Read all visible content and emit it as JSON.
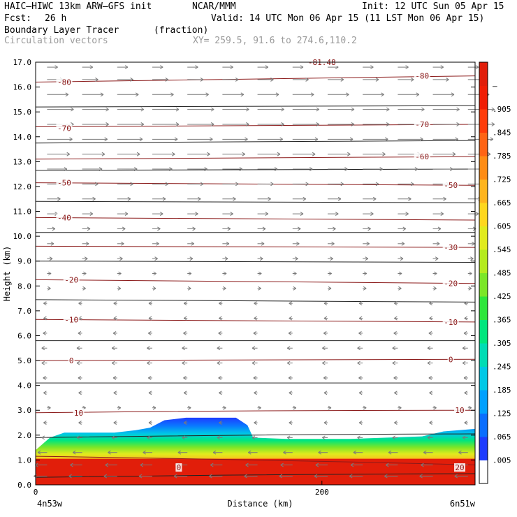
{
  "header": {
    "model": "HAIC—HIWC 13km ARW—GFS init",
    "org": "NCAR/MMM",
    "init": "Init: 12 UTC Sun 05 Apr 15",
    "fcst_label": "Fcst:",
    "fcst_value": "26 h",
    "valid": "Valid: 14 UTC Mon 06 Apr 15 (11 LST Mon 06 Apr 15)",
    "field": "Boundary Layer Tracer",
    "units": "(fraction)",
    "vectors": "Circulation vectors",
    "xy": "XY= 259.5, 91.6 to 274.6,110.2"
  },
  "chart_data": {
    "type": "heatmap",
    "title": "Boundary Layer Tracer",
    "xlabel": "Distance (km)",
    "ylabel": "Height (km)",
    "xlim": [
      0,
      307
    ],
    "ylim": [
      0,
      17
    ],
    "x_ticks": [
      {
        "value": 0,
        "label": "0"
      },
      {
        "value": 200,
        "label": "200"
      }
    ],
    "x_end_labels": {
      "left": "4n53w",
      "right": "6n51w"
    },
    "y_ticks": [
      "0.0",
      "1.0",
      "2.0",
      "3.0",
      "4.0",
      "5.0",
      "6.0",
      "7.0",
      "8.0",
      "9.0",
      "10.0",
      "11.0",
      "12.0",
      "13.0",
      "14.0",
      "15.0",
      "16.0",
      "17.0"
    ],
    "colorbar": {
      "labels": [
        ".005",
        ".065",
        ".125",
        ".185",
        ".245",
        ".305",
        ".365",
        ".425",
        ".485",
        ".545",
        ".605",
        ".665",
        ".725",
        ".785",
        ".845",
        ".905",
        "—"
      ],
      "colors": [
        "#ffffff",
        "#1e3cff",
        "#0a6eff",
        "#00a0ff",
        "#00c8e6",
        "#00dcb4",
        "#00e67d",
        "#2ee63c",
        "#7be628",
        "#b4eb1e",
        "#e1eb1e",
        "#ffd71e",
        "#ffb41e",
        "#ff8c14",
        "#ff6414",
        "#ff3c0a",
        "#f01e05",
        "#e11e0a"
      ]
    },
    "tracer_top_km": [
      [
        0,
        1.4
      ],
      [
        10,
        1.9
      ],
      [
        20,
        2.1
      ],
      [
        40,
        2.1
      ],
      [
        55,
        2.1
      ],
      [
        70,
        2.2
      ],
      [
        80,
        2.3
      ],
      [
        90,
        2.6
      ],
      [
        105,
        2.7
      ],
      [
        140,
        2.7
      ],
      [
        148,
        2.4
      ],
      [
        152,
        1.9
      ],
      [
        175,
        1.85
      ],
      [
        220,
        1.85
      ],
      [
        270,
        1.95
      ],
      [
        285,
        2.15
      ],
      [
        307,
        2.25
      ]
    ],
    "temperature_labels_C": [
      {
        "value": "-80",
        "x_km": 20,
        "y_km": 16.2
      },
      {
        "value": "-80",
        "x_km": 270,
        "y_km": 16.45
      },
      {
        "value": "-81.48",
        "x_km": 200,
        "y_km": 17.0
      },
      {
        "value": "-70",
        "x_km": 20,
        "y_km": 14.35
      },
      {
        "value": "-70",
        "x_km": 270,
        "y_km": 14.5
      },
      {
        "value": "-60",
        "x_km": 270,
        "y_km": 13.2
      },
      {
        "value": "-50",
        "x_km": 20,
        "y_km": 12.15
      },
      {
        "value": "-50",
        "x_km": 290,
        "y_km": 12.05
      },
      {
        "value": "-40",
        "x_km": 20,
        "y_km": 10.75
      },
      {
        "value": "-30",
        "x_km": 290,
        "y_km": 9.55
      },
      {
        "value": "-20",
        "x_km": 25,
        "y_km": 8.25
      },
      {
        "value": "-20",
        "x_km": 290,
        "y_km": 8.1
      },
      {
        "value": "-10",
        "x_km": 25,
        "y_km": 6.65
      },
      {
        "value": "-10",
        "x_km": 290,
        "y_km": 6.55
      },
      {
        "value": "0",
        "x_km": 25,
        "y_km": 5.0
      },
      {
        "value": "0",
        "x_km": 290,
        "y_km": 5.05
      },
      {
        "value": "10",
        "x_km": 30,
        "y_km": 2.9
      },
      {
        "value": "10",
        "x_km": 305,
        "y_km": 3.0
      },
      {
        "value": "20",
        "x_km": 300,
        "y_km": 0.7
      },
      {
        "value": "0",
        "x_km": 100,
        "y_km": 0.7
      }
    ],
    "isotherm_heights_km": [
      {
        "left": 16.2,
        "right": 16.45
      },
      {
        "left": 15.2,
        "right": 15.25
      },
      {
        "left": 14.4,
        "right": 14.5
      },
      {
        "left": 13.75,
        "right": 13.85
      },
      {
        "left": 13.1,
        "right": 13.2
      },
      {
        "left": 12.65,
        "right": 12.7
      },
      {
        "left": 12.15,
        "right": 12.05
      },
      {
        "left": 11.4,
        "right": 11.35
      },
      {
        "left": 10.75,
        "right": 10.65
      },
      {
        "left": 10.15,
        "right": 10.15
      },
      {
        "left": 9.6,
        "right": 9.55
      },
      {
        "left": 9.0,
        "right": 8.95
      },
      {
        "left": 8.25,
        "right": 8.1
      },
      {
        "left": 7.45,
        "right": 7.35
      },
      {
        "left": 6.65,
        "right": 6.55
      },
      {
        "left": 5.8,
        "right": 5.8
      },
      {
        "left": 5.0,
        "right": 5.05
      },
      {
        "left": 4.1,
        "right": 4.1
      },
      {
        "left": 2.9,
        "right": 3.0
      },
      {
        "left": 1.9,
        "right": 2.05
      },
      {
        "left": 1.15,
        "right": 0.8
      },
      {
        "left": 0.3,
        "right": 0.45
      }
    ],
    "wind_levels": [
      {
        "y_km": 16.8,
        "u": 0.4
      },
      {
        "y_km": 16.3,
        "u": 0.6
      },
      {
        "y_km": 15.7,
        "u": 0.8
      },
      {
        "y_km": 15.1,
        "u": 1.0
      },
      {
        "y_km": 14.5,
        "u": 1.0
      },
      {
        "y_km": 13.9,
        "u": 0.95
      },
      {
        "y_km": 13.3,
        "u": 0.85
      },
      {
        "y_km": 12.7,
        "u": 0.75
      },
      {
        "y_km": 12.1,
        "u": 0.6
      },
      {
        "y_km": 11.5,
        "u": 0.5
      },
      {
        "y_km": 10.9,
        "u": 0.4
      },
      {
        "y_km": 10.3,
        "u": 0.3
      },
      {
        "y_km": 9.7,
        "u": 0.25
      },
      {
        "y_km": 9.1,
        "u": 0.2
      },
      {
        "y_km": 8.5,
        "u": 0.15
      },
      {
        "y_km": 7.9,
        "u": 0.1
      },
      {
        "y_km": 7.3,
        "u": -0.05
      },
      {
        "y_km": 6.7,
        "u": -0.1
      },
      {
        "y_km": 6.1,
        "u": -0.15
      },
      {
        "y_km": 5.5,
        "u": -0.2
      },
      {
        "y_km": 4.9,
        "u": -0.2
      },
      {
        "y_km": 4.3,
        "u": -0.15
      },
      {
        "y_km": 3.7,
        "u": -0.1
      },
      {
        "y_km": 3.1,
        "u": 0.05
      },
      {
        "y_km": 2.5,
        "u": -0.1
      },
      {
        "y_km": 1.9,
        "u": -0.2
      },
      {
        "y_km": 1.3,
        "u": -0.35
      },
      {
        "y_km": 0.8,
        "u": -0.45
      },
      {
        "y_km": 0.35,
        "u": -0.5
      }
    ],
    "colors": {
      "isotherm": "#8b1a1a",
      "vector": "#7a7a7a",
      "background_field": "#ffffff"
    }
  }
}
